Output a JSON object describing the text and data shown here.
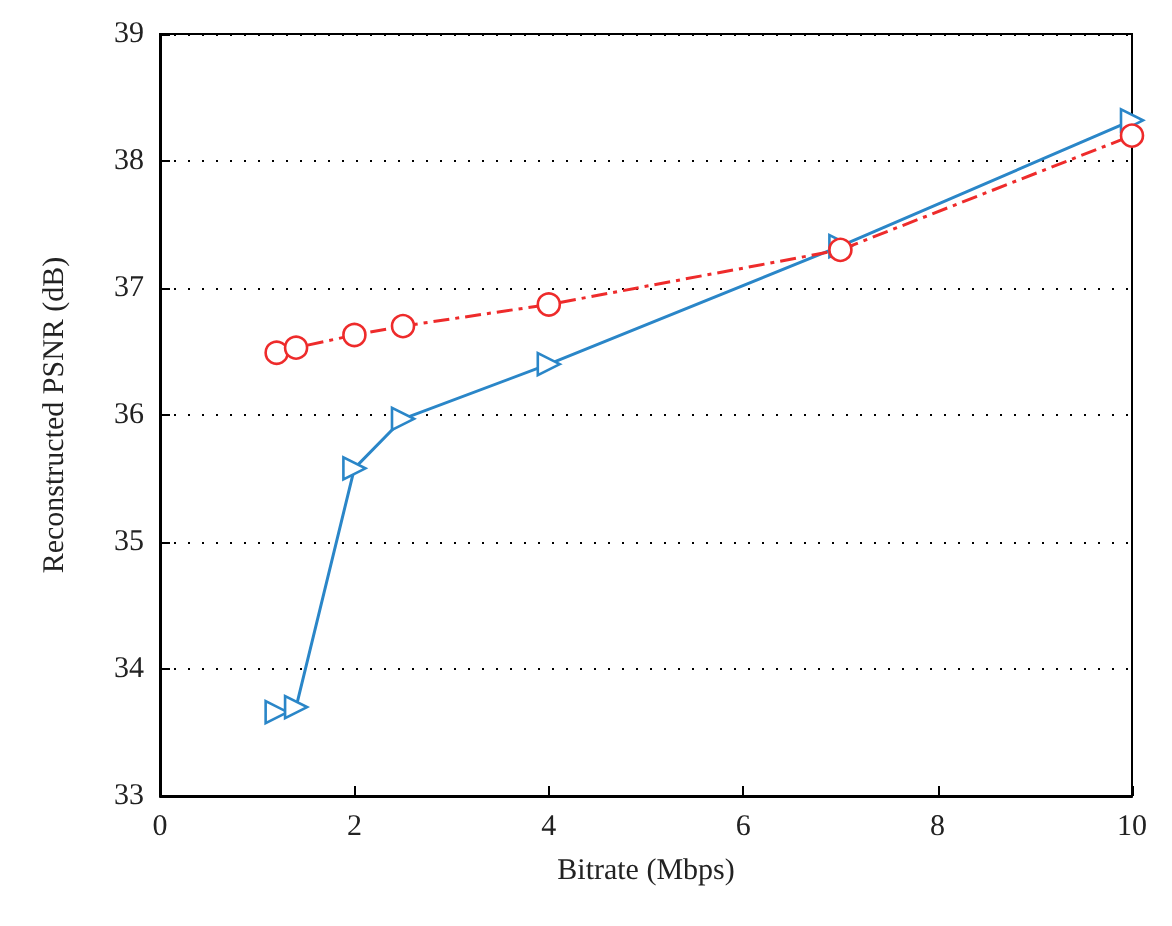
{
  "chart_data": {
    "type": "line",
    "xlabel": "Bitrate (Mbps)",
    "ylabel": "Reconstructed PSNR (dB)",
    "xlim": [
      0,
      10
    ],
    "xticks": [
      0,
      2,
      4,
      6,
      8,
      10
    ],
    "ylim": [
      33,
      39
    ],
    "yticks": [
      33,
      34,
      35,
      36,
      37,
      38,
      39
    ],
    "grid": "y",
    "series": [
      {
        "color": "#ee2b2b",
        "marker": "circle",
        "line_style": "dashed",
        "x": [
          1.2,
          1.4,
          2,
          2.5,
          4,
          7,
          10
        ],
        "values": [
          36.49,
          36.53,
          36.63,
          36.7,
          36.87,
          37.3,
          38.2
        ]
      },
      {
        "color": "#2a86c8",
        "marker": "triangle",
        "line_style": "solid",
        "x": [
          1.2,
          1.4,
          2,
          2.5,
          4,
          7,
          10
        ],
        "values": [
          33.66,
          33.7,
          35.58,
          35.97,
          36.4,
          37.33,
          38.32
        ]
      }
    ]
  }
}
